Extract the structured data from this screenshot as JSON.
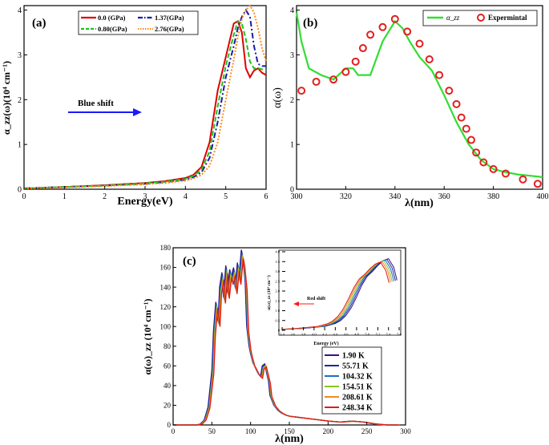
{
  "chart_data": [
    {
      "id": "a",
      "type": "line",
      "panel_label": "(a)",
      "xlabel": "Energy(eV)",
      "ylabel": "α_zz(ω)(10⁴ cm⁻¹)",
      "xlim": [
        0,
        6
      ],
      "ylim": [
        0,
        4.1
      ],
      "xticks": [
        0,
        1,
        2,
        3,
        4,
        5,
        6
      ],
      "yticks": [
        0,
        1,
        2,
        3,
        4
      ],
      "annotation": "Blue shift",
      "legend": [
        "0.0 (GPa)",
        "1.37(GPa)",
        "0.80(GPa)",
        "2.76(GPa)"
      ],
      "series": [
        {
          "name": "0.0 (GPa)",
          "color": "#e00000",
          "dash": "solid",
          "x": [
            0,
            1,
            2,
            3,
            3.5,
            4,
            4.2,
            4.4,
            4.6,
            4.8,
            5.0,
            5.2,
            5.3,
            5.4,
            5.5,
            5.6,
            5.7,
            5.8,
            5.9,
            6.0
          ],
          "y": [
            0.02,
            0.05,
            0.09,
            0.14,
            0.18,
            0.25,
            0.32,
            0.5,
            1.05,
            2.2,
            2.95,
            3.7,
            3.75,
            3.5,
            2.7,
            2.5,
            2.65,
            2.7,
            2.6,
            2.55
          ]
        },
        {
          "name": "1.37(GPa)",
          "color": "#1a1aa8",
          "dash": "dashdot",
          "x": [
            0,
            1,
            2,
            3,
            3.5,
            4,
            4.2,
            4.4,
            4.6,
            4.8,
            5.0,
            5.2,
            5.3,
            5.4,
            5.5,
            5.6,
            5.7,
            5.8,
            5.9,
            6.0
          ],
          "y": [
            0.02,
            0.05,
            0.08,
            0.12,
            0.16,
            0.21,
            0.27,
            0.38,
            0.7,
            1.5,
            2.5,
            3.2,
            3.6,
            3.85,
            4.0,
            3.85,
            3.2,
            2.8,
            2.75,
            2.75
          ]
        },
        {
          "name": "0.80(GPa)",
          "color": "#22c022",
          "dash": "dash",
          "x": [
            0,
            1,
            2,
            3,
            3.5,
            4,
            4.2,
            4.4,
            4.6,
            4.8,
            5.0,
            5.2,
            5.3,
            5.4,
            5.5,
            5.6,
            5.7,
            5.8,
            5.9,
            6.0
          ],
          "y": [
            0.02,
            0.05,
            0.08,
            0.13,
            0.17,
            0.23,
            0.3,
            0.43,
            0.85,
            1.85,
            2.75,
            3.45,
            3.75,
            3.7,
            3.35,
            2.85,
            2.7,
            2.7,
            2.68,
            2.65
          ]
        },
        {
          "name": "2.76(GPa)",
          "color": "#ff8c1a",
          "dash": "dot",
          "x": [
            0,
            1,
            2,
            3,
            3.5,
            4,
            4.2,
            4.4,
            4.6,
            4.8,
            5.0,
            5.2,
            5.3,
            5.4,
            5.5,
            5.6,
            5.7,
            5.8,
            5.9,
            6.0
          ],
          "y": [
            0.02,
            0.04,
            0.07,
            0.11,
            0.14,
            0.19,
            0.24,
            0.32,
            0.52,
            1.05,
            2.0,
            2.9,
            3.4,
            3.8,
            4.0,
            4.1,
            3.95,
            3.6,
            3.15,
            2.85
          ]
        }
      ]
    },
    {
      "id": "b",
      "type": "line",
      "panel_label": "(b)",
      "xlabel": "λ(nm)",
      "ylabel": "α(ω)",
      "xlim": [
        300,
        400
      ],
      "ylim": [
        0,
        4.1
      ],
      "xticks": [
        300,
        320,
        340,
        360,
        380,
        400
      ],
      "yticks": [
        0,
        1,
        2,
        3,
        4
      ],
      "legend": [
        "α_zz",
        "Expermintal"
      ],
      "series": [
        {
          "name": "α_zz",
          "color": "#33dd33",
          "style": "line",
          "x": [
            300,
            302,
            305,
            310,
            315,
            320,
            323,
            325,
            330,
            335,
            340,
            343,
            346,
            350,
            355,
            360,
            365,
            370,
            375,
            380,
            385,
            390,
            395,
            400
          ],
          "y": [
            3.95,
            3.3,
            2.7,
            2.55,
            2.45,
            2.7,
            2.7,
            2.55,
            2.55,
            3.3,
            3.75,
            3.6,
            3.3,
            2.95,
            2.65,
            2.1,
            1.5,
            1.0,
            0.65,
            0.45,
            0.38,
            0.33,
            0.3,
            0.27
          ]
        },
        {
          "name": "Expermintal",
          "color": "#e02020",
          "style": "markers",
          "x": [
            302,
            308,
            315,
            320,
            324,
            327,
            330,
            335,
            340,
            345,
            350,
            354,
            358,
            362,
            365,
            367,
            369,
            371,
            373,
            376,
            380,
            385,
            392,
            398
          ],
          "y": [
            2.2,
            2.4,
            2.45,
            2.62,
            2.85,
            3.15,
            3.45,
            3.62,
            3.8,
            3.52,
            3.25,
            2.9,
            2.55,
            2.2,
            1.9,
            1.6,
            1.35,
            1.1,
            0.82,
            0.6,
            0.45,
            0.35,
            0.22,
            0.12
          ]
        }
      ]
    },
    {
      "id": "c",
      "type": "line",
      "panel_label": "(c)",
      "xlabel": "λ(nm)",
      "ylabel": "α(ω)_zz (10⁴ cm⁻¹)",
      "xlim": [
        0,
        300
      ],
      "ylim": [
        0,
        180
      ],
      "xticks": [
        0,
        50,
        100,
        150,
        200,
        250,
        300
      ],
      "yticks": [
        0,
        20,
        40,
        60,
        80,
        100,
        120,
        140,
        160,
        180
      ],
      "legend": [
        "1.90 K",
        "55.71 K",
        "104.32 K",
        "154.51 K",
        "208.61 K",
        "248.34 K"
      ],
      "base_curve": {
        "x": [
          0,
          30,
          35,
          40,
          45,
          50,
          52,
          55,
          58,
          60,
          63,
          65,
          68,
          70,
          73,
          75,
          78,
          80,
          83,
          85,
          88,
          90,
          93,
          95,
          98,
          100,
          103,
          105,
          108,
          110,
          113,
          115,
          118,
          120,
          123,
          125,
          130,
          135,
          140,
          145,
          150,
          160,
          170,
          180,
          190,
          200,
          215,
          230,
          245,
          260,
          275,
          285,
          290
        ],
        "y": [
          0,
          0,
          1,
          5,
          18,
          55,
          95,
          125,
          105,
          140,
          155,
          130,
          162,
          135,
          158,
          150,
          160,
          140,
          165,
          150,
          178,
          170,
          145,
          100,
          80,
          72,
          63,
          60,
          55,
          52,
          50,
          60,
          62,
          55,
          45,
          30,
          20,
          15,
          12,
          10,
          9,
          8,
          7,
          6,
          5,
          4,
          3,
          4,
          3,
          1,
          0,
          0,
          0
        ]
      },
      "series": [
        {
          "name": "1.90 K",
          "color": "#3a0f8c",
          "dx": 0.0,
          "scale": 1.0
        },
        {
          "name": "55.71 K",
          "color": "#1a2a9a",
          "dx": 0.5,
          "scale": 0.99
        },
        {
          "name": "104.32 K",
          "color": "#1a6fc8",
          "dx": 1.0,
          "scale": 0.98
        },
        {
          "name": "154.51 K",
          "color": "#88c820",
          "dx": 1.5,
          "scale": 0.97
        },
        {
          "name": "208.61 K",
          "color": "#f08a20",
          "dx": 2.0,
          "scale": 0.96
        },
        {
          "name": "248.34 K",
          "color": "#e01a1a",
          "dx": 2.5,
          "scale": 0.95
        }
      ],
      "inset": {
        "type": "line",
        "xlabel": "Energy (eV)",
        "ylabel": "α(ω)_zz (10⁴ cm⁻¹)",
        "xlim": [
          3.4,
          5.6
        ],
        "ylim": [
          0,
          4.0
        ],
        "xticks": [
          3.4,
          3.6,
          3.8,
          4.0,
          4.2,
          4.4,
          4.6,
          4.8,
          5.0,
          5.2,
          5.4,
          5.6
        ],
        "xtick_labels": [
          "3.4",
          "3.6",
          "3.8",
          "4.0",
          "4.2",
          "4.4",
          "4.6",
          "4.8",
          "5.0",
          "5.2",
          "5.4",
          "5.6"
        ],
        "yticks": [
          0,
          0.5,
          1.0,
          1.5,
          2.0,
          2.5,
          3.0,
          3.5,
          4.0
        ],
        "ytick_labels": [
          "0",
          "0.5",
          "1.0",
          "1.5",
          "2.0",
          "2.5",
          "3.0",
          "3.5",
          "4.0"
        ],
        "annotation": "Red shift",
        "base_curve": {
          "x": [
            3.4,
            3.8,
            4.2,
            4.4,
            4.5,
            4.6,
            4.7,
            4.8,
            4.9,
            5.0,
            5.1,
            5.2,
            5.3,
            5.4,
            5.5,
            5.56
          ],
          "y": [
            0.05,
            0.1,
            0.2,
            0.35,
            0.5,
            0.75,
            1.15,
            1.7,
            2.3,
            2.75,
            3.0,
            3.3,
            3.55,
            3.65,
            3.2,
            2.55
          ]
        }
      }
    }
  ]
}
